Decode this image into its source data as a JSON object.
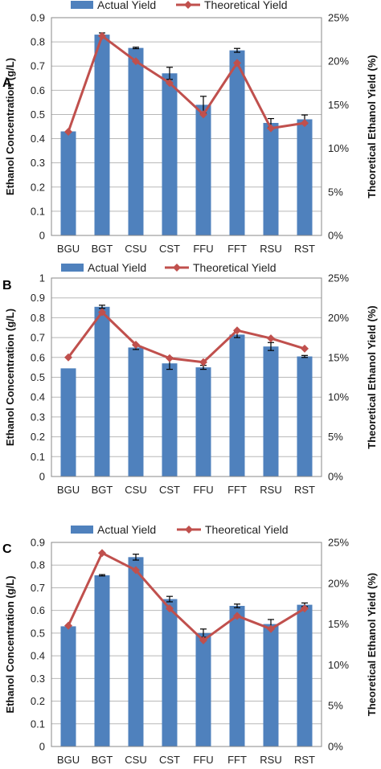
{
  "colors": {
    "bar": "#4F81BD",
    "line": "#C0504D",
    "grid": "#b8b8b8",
    "frame": "#888888"
  },
  "chart_data": [
    {
      "panel": "A",
      "type": "bar",
      "categories": [
        "BGU",
        "BGT",
        "CSU",
        "CST",
        "FFU",
        "FFT",
        "RSU",
        "RST"
      ],
      "series": [
        {
          "name": "Actual Yield",
          "type": "bar",
          "axis": "left",
          "values": [
            0.43,
            0.83,
            0.775,
            0.67,
            0.54,
            0.765,
            0.465,
            0.48
          ],
          "errors": [
            0,
            0.007,
            0.003,
            0.025,
            0.035,
            0.008,
            0.018,
            0.018
          ]
        },
        {
          "name": "Theoretical Yield",
          "type": "line",
          "axis": "right",
          "values": [
            0.119,
            0.229,
            0.2,
            0.175,
            0.139,
            0.198,
            0.123,
            0.129
          ]
        }
      ],
      "ylabel": "Ethanol Concentration (g/L)",
      "ylabel_right": "Theoretical Ethanol Yield (%)",
      "ylim": [
        0,
        0.9
      ],
      "yticks": [
        "0",
        "0.1",
        "0.2",
        "0.3",
        "0.4",
        "0.5",
        "0.6",
        "0.7",
        "0.8",
        "0.9"
      ],
      "ylim_right": [
        0,
        0.25
      ],
      "yticks_right": [
        "0%",
        "5%",
        "10%",
        "15%",
        "20%",
        "25%"
      ],
      "legend_position": "top",
      "grid": true
    },
    {
      "panel": "B",
      "type": "bar",
      "categories": [
        "BGU",
        "BGT",
        "CSU",
        "CST",
        "FFU",
        "FFT",
        "RSU",
        "RST"
      ],
      "series": [
        {
          "name": "Actual Yield",
          "type": "bar",
          "axis": "left",
          "values": [
            0.545,
            0.855,
            0.65,
            0.57,
            0.55,
            0.715,
            0.655,
            0.605
          ],
          "errors": [
            0,
            0.008,
            0.01,
            0.03,
            0.01,
            0.015,
            0.02,
            0.005
          ]
        },
        {
          "name": "Theoretical Yield",
          "type": "line",
          "axis": "right",
          "values": [
            0.15,
            0.207,
            0.166,
            0.149,
            0.144,
            0.184,
            0.174,
            0.161
          ]
        }
      ],
      "ylabel": "Ethanol Concentration (g/L)",
      "ylabel_right": "Theoretical Ethanol Yield (%)",
      "ylim": [
        0,
        1
      ],
      "yticks": [
        "0",
        "0.1",
        "0.2",
        "0.3",
        "0.4",
        "0.5",
        "0.6",
        "0.7",
        "0.8",
        "0.9",
        "1"
      ],
      "ylim_right": [
        0,
        0.25
      ],
      "yticks_right": [
        "0%",
        "5%",
        "10%",
        "15%",
        "20%",
        "25%"
      ],
      "legend_position": "top",
      "grid": true
    },
    {
      "panel": "C",
      "type": "bar",
      "categories": [
        "BGU",
        "BGT",
        "CSU",
        "CST",
        "FFU",
        "FFT",
        "RSU",
        "RST"
      ],
      "series": [
        {
          "name": "Actual Yield",
          "type": "bar",
          "axis": "left",
          "values": [
            0.53,
            0.755,
            0.835,
            0.65,
            0.5,
            0.62,
            0.54,
            0.625
          ],
          "errors": [
            0,
            0.003,
            0.013,
            0.012,
            0.018,
            0.008,
            0.02,
            0.008
          ]
        },
        {
          "name": "Theoretical Yield",
          "type": "line",
          "axis": "right",
          "values": [
            0.148,
            0.237,
            0.216,
            0.169,
            0.13,
            0.16,
            0.144,
            0.169
          ]
        }
      ],
      "ylabel": "Ethanol Concentration (g/L)",
      "ylabel_right": "Theoretical Ethanol Yield (%)",
      "ylim": [
        0,
        0.9
      ],
      "yticks": [
        "0",
        "0.1",
        "0.2",
        "0.3",
        "0.4",
        "0.5",
        "0.6",
        "0.7",
        "0.8",
        "0.9"
      ],
      "ylim_right": [
        0,
        0.25
      ],
      "yticks_right": [
        "0%",
        "5%",
        "10%",
        "15%",
        "20%",
        "25%"
      ],
      "legend_position": "top",
      "grid": true
    }
  ]
}
